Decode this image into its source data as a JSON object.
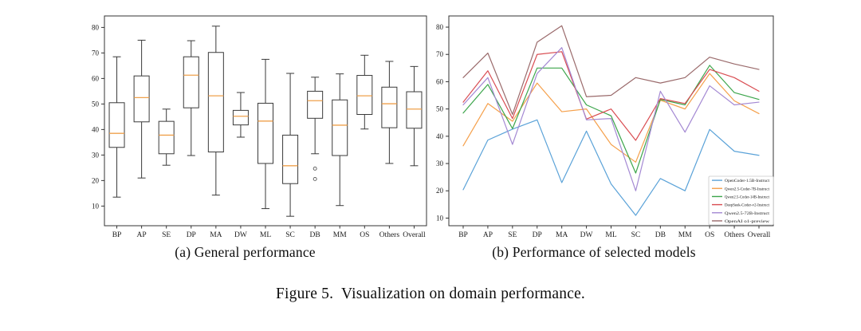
{
  "figure_caption": "Figure 5.  Visualization on domain performance.",
  "chart_data": [
    {
      "type": "boxplot",
      "title": "(a) General performance",
      "categories": [
        "BP",
        "AP",
        "SE",
        "DP",
        "MA",
        "DW",
        "ML",
        "SC",
        "DB",
        "MM",
        "OS",
        "Others",
        "Overall"
      ],
      "xlabel": "",
      "ylabel": "",
      "ylim": [
        2.3,
        84.5
      ],
      "yticks": [
        10,
        20,
        30,
        40,
        50,
        60,
        70,
        80
      ],
      "grid": false,
      "box_color": "#3a3a3a",
      "median_color": "#efa14c",
      "boxes": [
        {
          "category": "BP",
          "whislo": 13.5,
          "q1": 33.0,
          "med": 38.5,
          "q3": 50.5,
          "whishi": 68.5,
          "fliers": []
        },
        {
          "category": "AP",
          "whislo": 21.0,
          "q1": 43.0,
          "med": 52.5,
          "q3": 61.0,
          "whishi": 75.0,
          "fliers": []
        },
        {
          "category": "SE",
          "whislo": 26.0,
          "q1": 30.5,
          "med": 37.8,
          "q3": 43.2,
          "whishi": 48.0,
          "fliers": []
        },
        {
          "category": "DP",
          "whislo": 29.8,
          "q1": 48.5,
          "med": 61.3,
          "q3": 68.5,
          "whishi": 74.8,
          "fliers": []
        },
        {
          "category": "MA",
          "whislo": 14.3,
          "q1": 31.2,
          "med": 53.2,
          "q3": 70.2,
          "whishi": 80.5,
          "fliers": []
        },
        {
          "category": "DW",
          "whislo": 37.0,
          "q1": 41.8,
          "med": 45.2,
          "q3": 47.5,
          "whishi": 54.5,
          "fliers": []
        },
        {
          "category": "ML",
          "whislo": 9.0,
          "q1": 26.7,
          "med": 43.3,
          "q3": 50.3,
          "whishi": 67.5,
          "fliers": []
        },
        {
          "category": "SC",
          "whislo": 6.0,
          "q1": 18.8,
          "med": 25.8,
          "q3": 37.8,
          "whishi": 62.0,
          "fliers": []
        },
        {
          "category": "DB",
          "whislo": 30.5,
          "q1": 44.4,
          "med": 51.3,
          "q3": 55.0,
          "whishi": 60.5,
          "fliers": [
            24.7,
            20.6
          ]
        },
        {
          "category": "MM",
          "whislo": 10.2,
          "q1": 29.8,
          "med": 41.7,
          "q3": 51.6,
          "whishi": 61.8,
          "fliers": []
        },
        {
          "category": "OS",
          "whislo": 40.2,
          "q1": 45.9,
          "med": 53.2,
          "q3": 61.2,
          "whishi": 69.1,
          "fliers": []
        },
        {
          "category": "Others",
          "whislo": 26.7,
          "q1": 40.7,
          "med": 50.1,
          "q3": 56.6,
          "whishi": 66.7,
          "fliers": []
        },
        {
          "category": "Overall",
          "whislo": 25.8,
          "q1": 40.5,
          "med": 48.0,
          "q3": 54.8,
          "whishi": 64.7,
          "fliers": []
        }
      ]
    },
    {
      "type": "line",
      "title": "(b) Performance of selected models",
      "categories": [
        "BP",
        "AP",
        "SE",
        "DP",
        "MA",
        "DW",
        "ML",
        "SC",
        "DB",
        "MM",
        "OS",
        "Others",
        "Overall"
      ],
      "xlabel": "",
      "ylabel": "",
      "ylim": [
        7.2,
        84.1
      ],
      "yticks": [
        10,
        20,
        30,
        40,
        50,
        60,
        70,
        80
      ],
      "grid": false,
      "legend_position": "lower-right",
      "series": [
        {
          "name": "OpenCoder-1.5B-Instruct",
          "color": "#5aa2d8",
          "values": [
            20.4,
            38.6,
            42.6,
            46.0,
            23.0,
            41.9,
            22.5,
            11.0,
            24.5,
            20.0,
            42.5,
            34.5,
            33.0
          ]
        },
        {
          "name": "Qwen2.5-Coder-7B-Instruct",
          "color": "#f5a04b",
          "values": [
            36.5,
            52.0,
            45.5,
            59.5,
            49.0,
            50.0,
            37.0,
            30.5,
            53.2,
            50.0,
            63.0,
            53.0,
            48.3
          ]
        },
        {
          "name": "Qwen2.5-Coder-14B-Instruct",
          "color": "#3ca54b",
          "values": [
            48.5,
            59.0,
            42.8,
            65.0,
            65.0,
            51.5,
            47.5,
            26.5,
            53.5,
            51.5,
            66.0,
            56.0,
            53.5
          ]
        },
        {
          "name": "DeepSeek-Coder-v2-Instruct",
          "color": "#d94d52",
          "values": [
            52.5,
            64.0,
            46.5,
            70.0,
            71.0,
            46.3,
            50.0,
            38.5,
            53.8,
            52.0,
            64.5,
            61.5,
            56.5
          ]
        },
        {
          "name": "Qwen2.5-72B-Instruct",
          "color": "#a489d3",
          "values": [
            51.5,
            61.5,
            37.0,
            63.0,
            72.5,
            46.0,
            46.5,
            20.0,
            56.5,
            41.5,
            58.5,
            51.5,
            52.5
          ]
        },
        {
          "name": "OpenAI o1-preview",
          "color": "#9a6a6b",
          "values": [
            61.5,
            70.5,
            48.0,
            74.5,
            80.5,
            54.5,
            55.0,
            61.5,
            59.5,
            61.5,
            69.0,
            66.5,
            64.5
          ]
        }
      ]
    }
  ]
}
